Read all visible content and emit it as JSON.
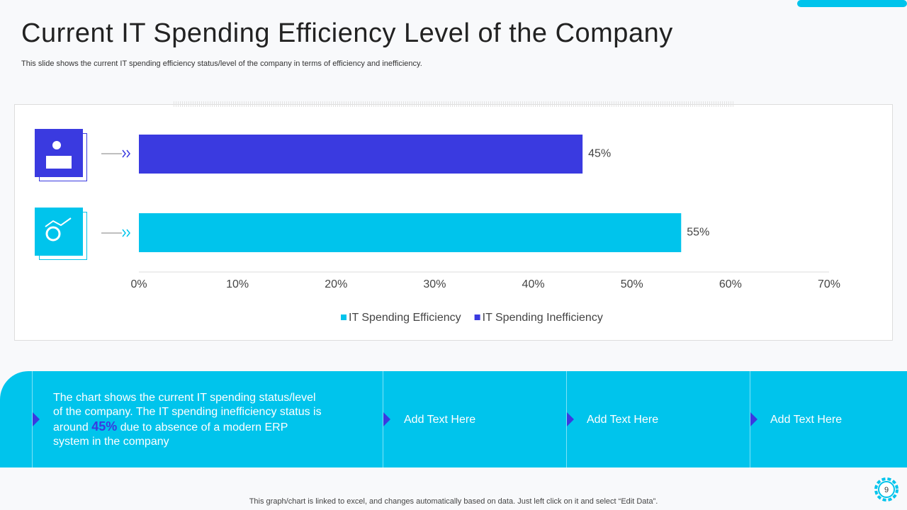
{
  "title": "Current IT Spending Efficiency Level of the Company",
  "subtitle": "This slide shows the current IT  spending efficiency status/level of the company in terms of efficiency and inefficiency.",
  "chart_data": {
    "type": "bar",
    "orientation": "horizontal",
    "series": [
      {
        "name": "IT Spending Efficiency",
        "color": "#00c4ec",
        "values": [
          55
        ],
        "value_labels": [
          "55%"
        ]
      },
      {
        "name": "IT Spending Inefficiency",
        "color": "#3a3ae0",
        "values": [
          45
        ],
        "value_labels": [
          "45%"
        ]
      }
    ],
    "xlim": [
      0,
      70
    ],
    "xticks": [
      {
        "value": 0,
        "label": "0%"
      },
      {
        "value": 10,
        "label": "10%"
      },
      {
        "value": 20,
        "label": "20%"
      },
      {
        "value": 30,
        "label": "30%"
      },
      {
        "value": 40,
        "label": "40%"
      },
      {
        "value": 50,
        "label": "50%"
      },
      {
        "value": 60,
        "label": "60%"
      },
      {
        "value": 70,
        "label": "70%"
      }
    ],
    "legend": "bottom"
  },
  "panel": {
    "summary": [
      "The chart shows the current IT spending status/level of the company. The IT spending inefficiency status is around",
      "45%",
      "due to absence of a modern ERP system in the company"
    ],
    "boxes": [
      "Add Text Here",
      "Add Text Here",
      "Add Text Here"
    ]
  },
  "footer": "This graph/chart is linked to excel,  and changes automatically based on data. Just left click on it and select “Edit Data”.",
  "page_number": "9"
}
